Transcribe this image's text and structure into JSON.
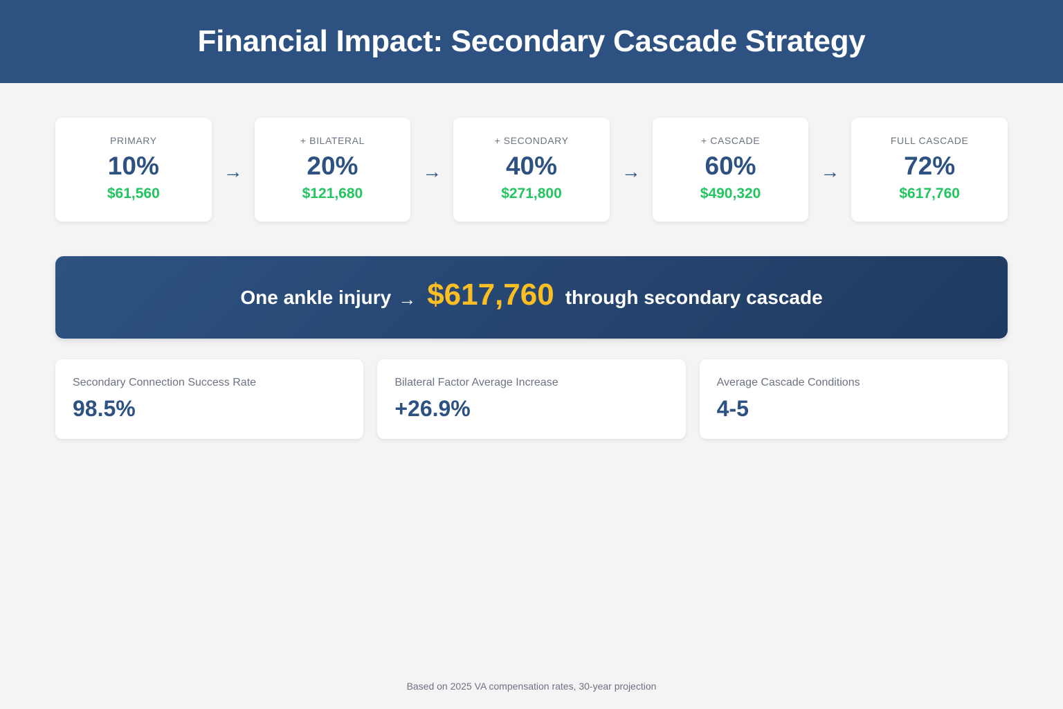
{
  "header": {
    "title": "Financial Impact: Secondary Cascade Strategy"
  },
  "colors": {
    "primary": "#2d5282",
    "money_green": "#22c55e",
    "highlight_gold": "#fbbf24",
    "background": "#f4f4f4"
  },
  "flow": {
    "arrow_icon": "→",
    "stages": [
      {
        "label": "PRIMARY",
        "percent": "10%",
        "amount": "$61,560"
      },
      {
        "label": "+ BILATERAL",
        "percent": "20%",
        "amount": "$121,680"
      },
      {
        "label": "+ SECONDARY",
        "percent": "40%",
        "amount": "$271,800"
      },
      {
        "label": "+ CASCADE",
        "percent": "60%",
        "amount": "$490,320"
      },
      {
        "label": "FULL CASCADE",
        "percent": "72%",
        "amount": "$617,760"
      }
    ]
  },
  "banner": {
    "prefix": "One ankle injury",
    "arrow": "→",
    "amount": "$617,760",
    "suffix": "through secondary cascade"
  },
  "stats": [
    {
      "label": "Secondary Connection Success Rate",
      "value": "98.5%"
    },
    {
      "label": "Bilateral Factor Average Increase",
      "value": "+26.9%"
    },
    {
      "label": "Average Cascade Conditions",
      "value": "4-5"
    }
  ],
  "footnote": "Based on 2025 VA compensation rates, 30-year projection"
}
